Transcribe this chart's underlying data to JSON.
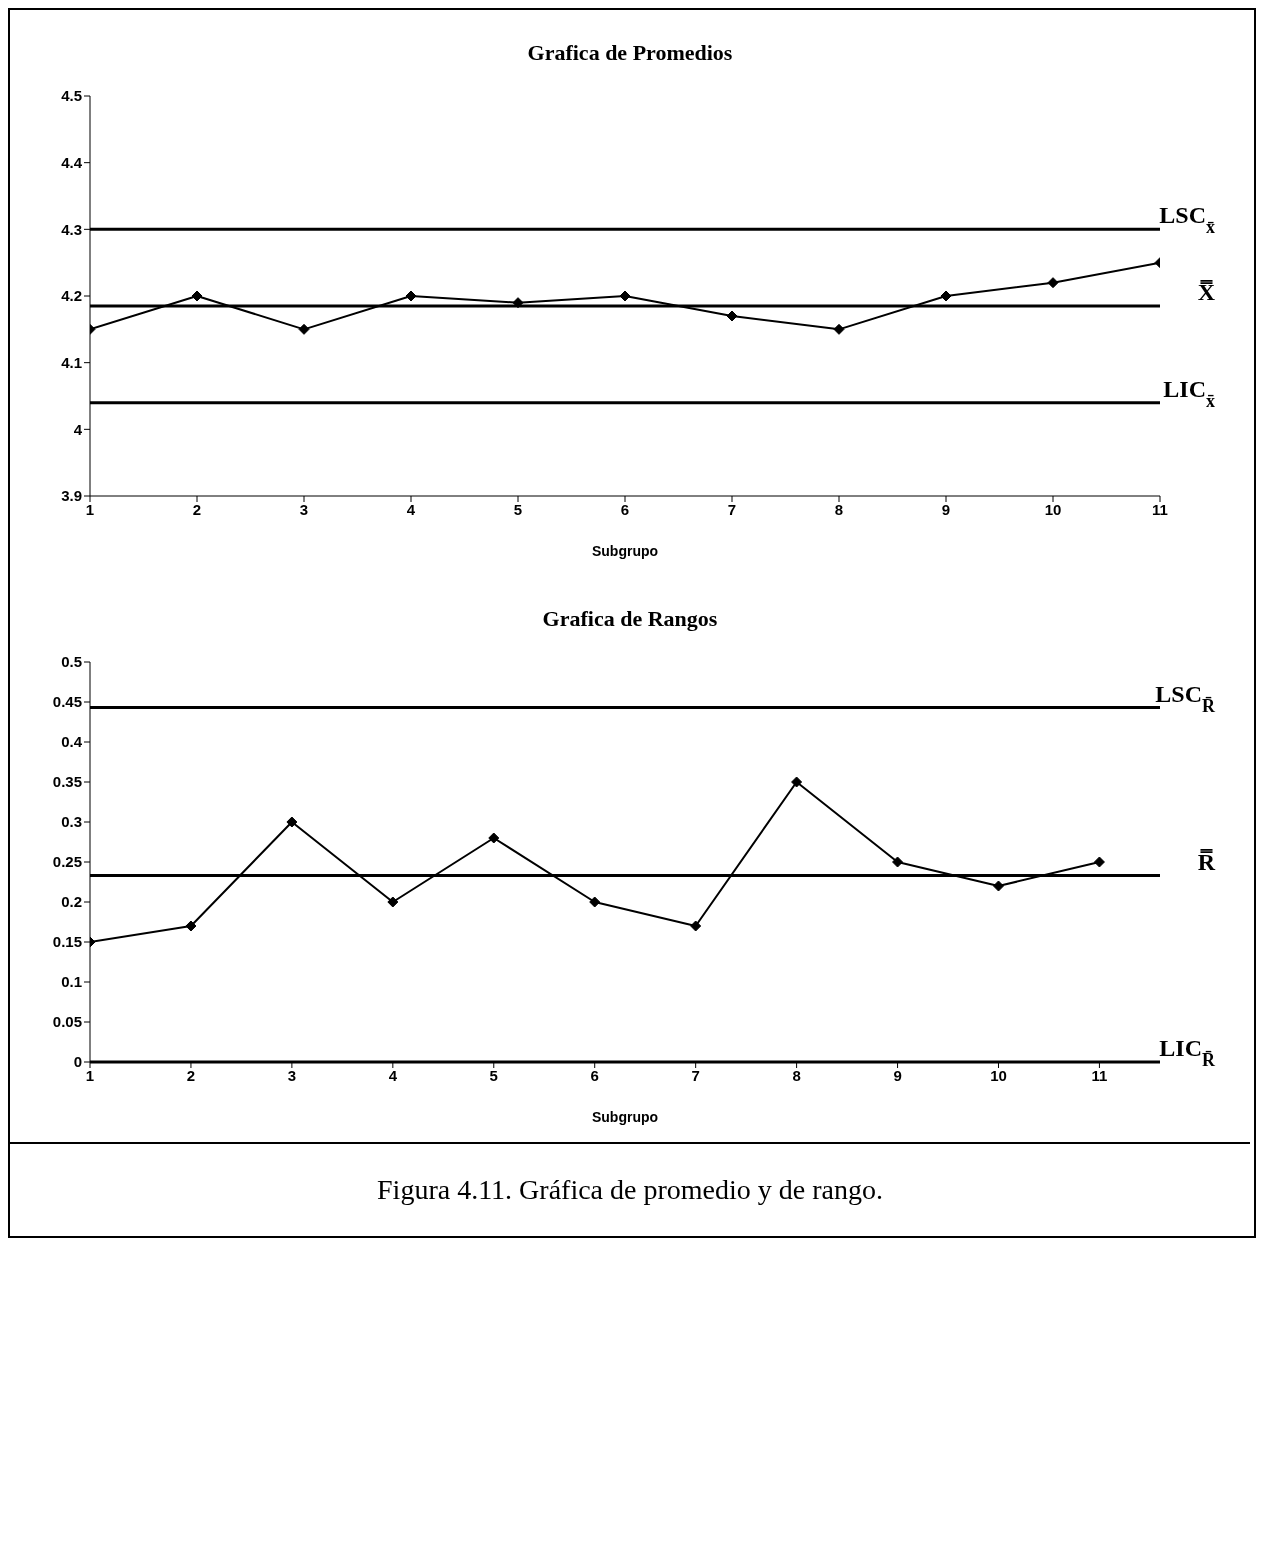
{
  "chart_data": [
    {
      "type": "line",
      "title": "Grafica de Promedios",
      "xlabel": "Subgrupo",
      "x": [
        1,
        2,
        3,
        4,
        5,
        6,
        7,
        8,
        9,
        10,
        11
      ],
      "series": [
        {
          "color": "#000000",
          "values": [
            4.15,
            4.2,
            4.15,
            4.2,
            4.19,
            4.2,
            4.17,
            4.15,
            4.2,
            4.22,
            4.25
          ]
        }
      ],
      "xlim": [
        1,
        11
      ],
      "xticks": [
        1,
        2,
        3,
        4,
        5,
        6,
        7,
        8,
        9,
        10,
        11
      ],
      "ylim": [
        3.9,
        4.5
      ],
      "yticks": [
        3.9,
        4,
        4.1,
        4.2,
        4.3,
        4.4,
        4.5
      ],
      "ref_lines": [
        {
          "axis": "y",
          "value": 4.3,
          "label": "LSC$_{x̄}$",
          "color": "#000000"
        },
        {
          "axis": "y",
          "value": 4.185,
          "label": "X̿",
          "color": "#000000"
        },
        {
          "axis": "y",
          "value": 4.04,
          "label": "LIC$_{x̄}$",
          "color": "#000000"
        }
      ],
      "grid": false,
      "legend": false,
      "marker": "diamond",
      "line_style": "solid"
    },
    {
      "type": "line",
      "title": "Grafica de Rangos",
      "xlabel": "Subgrupo",
      "x": [
        1,
        2,
        3,
        4,
        5,
        6,
        7,
        8,
        9,
        10,
        11
      ],
      "series": [
        {
          "color": "#000000",
          "values": [
            0.15,
            0.17,
            0.3,
            0.2,
            0.28,
            0.2,
            0.17,
            0.35,
            0.25,
            0.22,
            0.25
          ]
        }
      ],
      "xlim": [
        1,
        11.6
      ],
      "xticks": [
        1,
        2,
        3,
        4,
        5,
        6,
        7,
        8,
        9,
        10,
        11
      ],
      "ylim": [
        0,
        0.5
      ],
      "yticks": [
        0,
        0.05,
        0.1,
        0.15,
        0.2,
        0.25,
        0.3,
        0.35,
        0.4,
        0.45,
        0.5
      ],
      "ref_lines": [
        {
          "axis": "y",
          "value": 0.443,
          "label": "LSC$_{R̄}$",
          "color": "#000000"
        },
        {
          "axis": "y",
          "value": 0.233,
          "label": "R̿",
          "color": "#000000"
        },
        {
          "axis": "y",
          "value": 0,
          "label": "LIC$_{R̄}$",
          "color": "#000000"
        }
      ],
      "annotations": [
        "Figura 4.11. Gráfica de promedio y de rango."
      ],
      "grid": false,
      "legend": false,
      "marker": "diamond",
      "line_style": "solid"
    }
  ]
}
